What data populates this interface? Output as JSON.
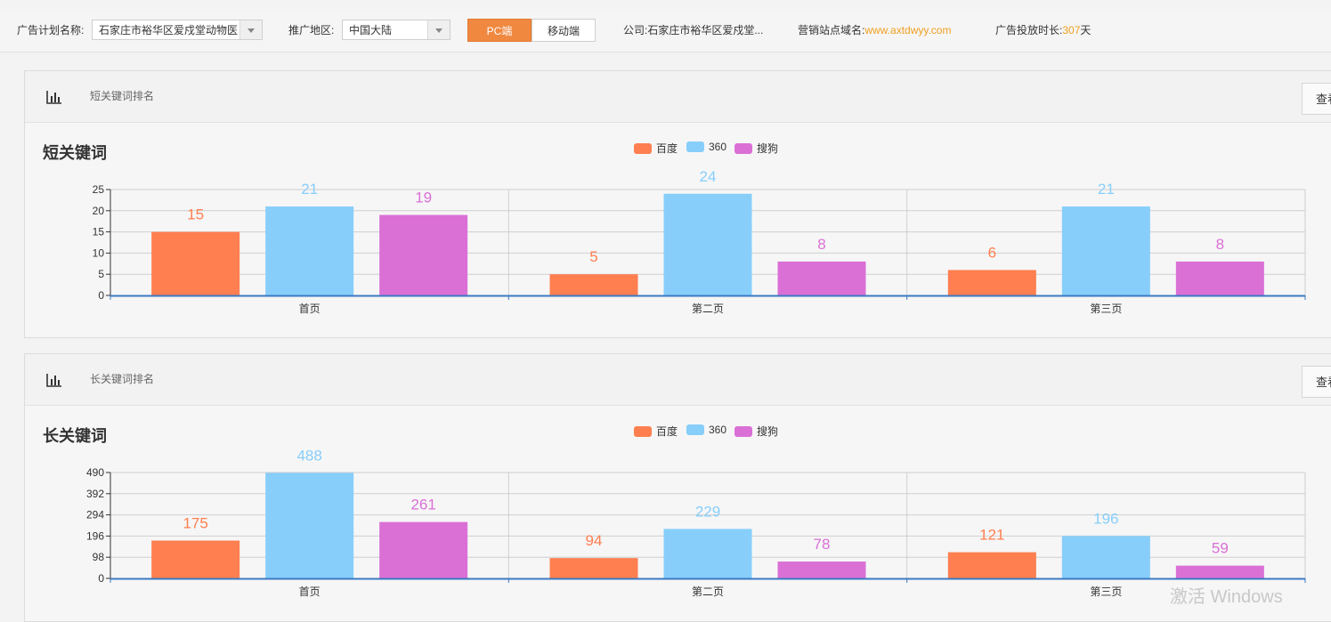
{
  "topbar": {
    "plan_label": "广告计划名称:",
    "plan_value": "石家庄市裕华区爱戍堂动物医",
    "region_label": "推广地区:",
    "region_value": "中国大陆",
    "pc_tab": "PC端",
    "mobile_tab": "移动端",
    "company_label": "公司:",
    "company_value": "石家庄市裕华区爱戍堂...",
    "domain_label": "营销站点域名:",
    "domain_value": "www.axtdwyy.com",
    "duration_label": "广告投放时长:",
    "duration_value": "307",
    "duration_unit": "天",
    "accent_color": "#f08840"
  },
  "panels": [
    {
      "subtitle": "短关键词排名",
      "view_button": "查看明细",
      "chart_icon": "bar-chart-icon"
    },
    {
      "subtitle": "长关键词排名",
      "view_button": "查看明细",
      "chart_icon": "bar-chart-icon"
    }
  ],
  "chart_data": [
    {
      "type": "bar",
      "title": "短关键词",
      "categories": [
        "首页",
        "第二页",
        "第三页"
      ],
      "series": [
        {
          "name": "百度",
          "color": "#ff7f50",
          "values": [
            15,
            5,
            6
          ]
        },
        {
          "name": "360",
          "color": "#87cefa",
          "values": [
            21,
            24,
            21
          ]
        },
        {
          "name": "搜狗",
          "color": "#da70d6",
          "values": [
            19,
            8,
            8
          ]
        }
      ],
      "yticks": [
        0,
        5,
        10,
        15,
        20,
        25
      ],
      "ylim": [
        0,
        25
      ],
      "grid": true,
      "legend": "top-center"
    },
    {
      "type": "bar",
      "title": "长关键词",
      "categories": [
        "首页",
        "第二页",
        "第三页"
      ],
      "series": [
        {
          "name": "百度",
          "color": "#ff7f50",
          "values": [
            175,
            94,
            121
          ]
        },
        {
          "name": "360",
          "color": "#87cefa",
          "values": [
            488,
            229,
            196
          ]
        },
        {
          "name": "搜狗",
          "color": "#da70d6",
          "values": [
            261,
            78,
            59
          ]
        }
      ],
      "yticks": [
        0,
        98,
        196,
        294,
        392,
        490
      ],
      "ylim": [
        0,
        490
      ],
      "grid": true,
      "legend": "top-center"
    }
  ],
  "watermark": "激活 Windows"
}
